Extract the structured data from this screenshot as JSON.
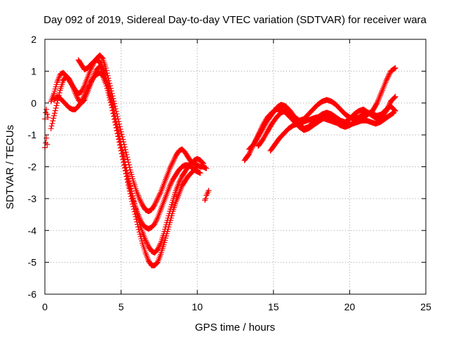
{
  "chart_data": {
    "type": "scatter",
    "title": "Day 092 of 2019, Sidereal Day-to-day VTEC variation (SDTVAR) for receiver wara",
    "xlabel": "GPS time / hours",
    "ylabel": "SDTVAR / TECUs",
    "xlim": [
      0,
      25
    ],
    "ylim": [
      -6,
      2
    ],
    "xticks": [
      0,
      5,
      10,
      15,
      20,
      25
    ],
    "yticks": [
      -6,
      -5,
      -4,
      -3,
      -2,
      -1,
      0,
      1,
      2
    ],
    "grid": true,
    "marker": "plus",
    "color": "#ff0000",
    "series": [
      {
        "x": [
          0.0,
          0.05,
          0.1,
          0.15,
          0.2
        ],
        "y": [
          -0.5,
          -0.3,
          -0.2,
          -0.35,
          -0.45
        ]
      },
      {
        "x": [
          0.0,
          0.05,
          0.1,
          0.15
        ],
        "y": [
          -1.4,
          -1.25,
          -1.1,
          -1.3
        ]
      },
      {
        "x": [
          0.4,
          0.6,
          0.8,
          1.0,
          1.2,
          1.4,
          1.6,
          1.8,
          2.0,
          2.2,
          2.4,
          2.6,
          2.8,
          3.0,
          3.2,
          3.4,
          3.6,
          3.8,
          4.0,
          4.2,
          4.4,
          4.6,
          4.8,
          5.0,
          5.2,
          5.4,
          5.6,
          5.8,
          6.0,
          6.2,
          6.4,
          6.6,
          6.8,
          7.0,
          7.2,
          7.4,
          7.6,
          7.8,
          8.0,
          8.2,
          8.4,
          8.6,
          8.8,
          9.0,
          9.2,
          9.4,
          9.6,
          9.8,
          10.0,
          10.2,
          10.4,
          10.6
        ],
        "y": [
          0.05,
          0.3,
          0.65,
          0.9,
          0.95,
          0.85,
          0.7,
          0.55,
          0.4,
          0.3,
          0.35,
          0.55,
          0.8,
          1.05,
          1.25,
          1.4,
          1.5,
          1.4,
          1.1,
          0.7,
          0.3,
          -0.1,
          -0.5,
          -0.9,
          -1.3,
          -1.7,
          -2.1,
          -2.45,
          -2.75,
          -3.0,
          -3.2,
          -3.35,
          -3.4,
          -3.35,
          -3.2,
          -3.0,
          -2.8,
          -2.55,
          -2.3,
          -2.05,
          -1.85,
          -1.65,
          -1.5,
          -1.45,
          -1.55,
          -1.7,
          -1.85,
          -1.9,
          -1.95,
          -2.0,
          -2.0,
          -2.05
        ]
      },
      {
        "x": [
          0.4,
          0.6,
          0.8,
          1.0,
          1.2,
          1.4,
          1.6,
          1.8,
          2.0,
          2.2,
          2.4,
          2.6,
          2.8,
          3.0,
          3.2,
          3.4,
          3.6,
          3.8,
          4.0,
          4.2,
          4.4,
          4.6,
          4.8,
          5.0,
          5.2,
          5.4,
          5.6,
          5.8,
          6.0,
          6.2,
          6.4,
          6.6,
          6.8,
          7.0,
          7.2,
          7.4,
          7.6,
          7.8,
          8.0,
          8.2,
          8.4,
          8.6,
          8.8,
          9.0,
          9.2,
          9.4,
          9.6,
          9.8,
          10.0,
          10.2,
          10.4
        ],
        "y": [
          -0.8,
          -0.4,
          0.0,
          0.4,
          0.7,
          0.85,
          0.75,
          0.55,
          0.3,
          0.1,
          0.0,
          0.1,
          0.35,
          0.6,
          0.85,
          1.05,
          1.15,
          1.05,
          0.8,
          0.45,
          0.05,
          -0.4,
          -0.85,
          -1.3,
          -1.75,
          -2.2,
          -2.6,
          -3.0,
          -3.4,
          -3.75,
          -4.05,
          -4.3,
          -4.5,
          -4.65,
          -4.7,
          -4.6,
          -4.4,
          -4.1,
          -3.75,
          -3.4,
          -3.05,
          -2.75,
          -2.5,
          -2.3,
          -2.15,
          -2.0,
          -1.9,
          -1.8,
          -1.75,
          -1.8,
          -1.9
        ]
      },
      {
        "x": [
          0.6,
          0.8,
          1.0,
          1.2,
          1.4,
          1.6,
          1.8,
          2.0,
          2.2,
          2.4,
          2.6,
          2.8,
          3.0,
          3.2,
          3.4,
          3.6,
          3.8,
          4.0,
          4.2,
          4.4,
          4.6,
          4.8,
          5.0,
          5.2,
          5.4,
          5.6,
          5.8,
          6.0,
          6.2,
          6.4,
          6.6,
          6.8,
          7.0,
          7.2,
          7.4,
          7.6,
          7.8,
          8.0,
          8.2,
          8.4,
          8.6,
          8.8,
          9.0,
          9.2,
          9.4,
          9.6,
          9.8,
          10.0
        ],
        "y": [
          0.1,
          0.2,
          0.15,
          0.05,
          -0.05,
          -0.15,
          -0.2,
          -0.2,
          -0.1,
          0.05,
          0.25,
          0.45,
          0.65,
          0.8,
          0.9,
          0.95,
          0.85,
          0.6,
          0.25,
          -0.15,
          -0.6,
          -1.05,
          -1.5,
          -1.95,
          -2.4,
          -2.85,
          -3.25,
          -3.65,
          -4.05,
          -4.4,
          -4.7,
          -4.95,
          -5.1,
          -5.1,
          -5.0,
          -4.75,
          -4.45,
          -4.1,
          -3.75,
          -3.4,
          -3.1,
          -2.85,
          -2.6,
          -2.45,
          -2.3,
          -2.2,
          -2.1,
          -2.0
        ]
      },
      {
        "x": [
          2.2,
          2.4,
          2.6,
          2.8,
          3.0,
          3.2,
          3.4,
          3.6,
          3.8,
          4.0,
          4.2,
          4.4,
          4.6,
          4.8,
          5.0,
          5.2,
          5.4,
          5.6,
          5.8,
          6.0,
          6.2,
          6.4,
          6.6,
          6.8,
          7.0,
          7.2,
          7.4,
          7.6,
          7.8,
          8.0,
          8.2,
          8.4,
          8.6,
          8.8,
          9.0,
          9.2,
          9.4,
          9.6,
          9.8,
          10.0,
          10.2
        ],
        "y": [
          1.35,
          1.2,
          1.05,
          1.1,
          1.2,
          1.3,
          1.35,
          1.3,
          1.1,
          0.8,
          0.4,
          -0.05,
          -0.5,
          -0.95,
          -1.4,
          -1.85,
          -2.3,
          -2.7,
          -3.05,
          -3.35,
          -3.6,
          -3.8,
          -3.9,
          -3.95,
          -3.9,
          -3.8,
          -3.6,
          -3.35,
          -3.1,
          -2.85,
          -2.6,
          -2.4,
          -2.25,
          -2.1,
          -2.0,
          -1.95,
          -1.95,
          -2.0,
          -2.1,
          -2.15,
          -2.2
        ]
      },
      {
        "x": [
          10.5,
          10.55,
          10.6,
          10.65,
          10.7,
          10.75
        ],
        "y": [
          -3.05,
          -3.0,
          -2.9,
          -2.85,
          -2.8,
          -2.75
        ]
      },
      {
        "x": [
          13.1,
          13.4,
          13.7,
          14.0,
          14.3,
          14.6,
          14.9,
          15.2,
          15.5,
          15.8,
          16.1,
          16.4,
          16.7,
          17.0,
          17.3,
          17.6,
          17.9,
          18.2,
          18.5,
          18.8,
          19.1,
          19.4,
          19.7,
          20.0,
          20.3,
          20.6,
          20.9,
          21.2,
          21.5,
          21.8,
          22.1,
          22.4,
          22.7,
          23.0
        ],
        "y": [
          -1.8,
          -1.6,
          -1.3,
          -1.0,
          -0.7,
          -0.45,
          -0.3,
          -0.2,
          -0.2,
          -0.3,
          -0.45,
          -0.6,
          -0.75,
          -0.85,
          -0.8,
          -0.7,
          -0.6,
          -0.5,
          -0.45,
          -0.5,
          -0.6,
          -0.7,
          -0.75,
          -0.7,
          -0.6,
          -0.5,
          -0.45,
          -0.35,
          -0.25,
          0.0,
          0.35,
          0.7,
          1.0,
          1.1
        ]
      },
      {
        "x": [
          13.4,
          13.7,
          14.0,
          14.3,
          14.6,
          14.9,
          15.2,
          15.5,
          15.8,
          16.1,
          16.4,
          16.7,
          17.0,
          17.3,
          17.6,
          17.9,
          18.2,
          18.5,
          18.8,
          19.1,
          19.4,
          19.7,
          20.0,
          20.3,
          20.6,
          20.9,
          21.2,
          21.5,
          21.8,
          22.1,
          22.4,
          22.7,
          23.0
        ],
        "y": [
          -1.45,
          -1.3,
          -1.05,
          -0.8,
          -0.55,
          -0.35,
          -0.15,
          -0.05,
          -0.1,
          -0.25,
          -0.45,
          -0.65,
          -0.8,
          -0.75,
          -0.6,
          -0.45,
          -0.35,
          -0.3,
          -0.35,
          -0.45,
          -0.55,
          -0.6,
          -0.5,
          -0.35,
          -0.25,
          -0.2,
          -0.3,
          -0.4,
          -0.5,
          -0.45,
          -0.25,
          0.05,
          0.2
        ]
      },
      {
        "x": [
          14.0,
          14.3,
          14.6,
          14.9,
          15.2,
          15.5,
          15.8,
          16.1,
          16.4,
          16.7,
          17.0,
          17.3,
          17.6,
          17.9,
          18.2,
          18.5,
          18.8,
          19.1,
          19.4,
          19.7,
          20.0,
          20.3,
          20.6,
          20.9,
          21.2,
          21.5,
          21.8,
          22.1,
          22.4,
          22.7,
          23.0
        ],
        "y": [
          -1.35,
          -1.15,
          -0.9,
          -0.65,
          -0.45,
          -0.3,
          -0.25,
          -0.3,
          -0.45,
          -0.55,
          -0.5,
          -0.35,
          -0.2,
          -0.05,
          0.05,
          0.1,
          0.05,
          -0.05,
          -0.2,
          -0.35,
          -0.45,
          -0.5,
          -0.45,
          -0.35,
          -0.3,
          -0.35,
          -0.4,
          -0.35,
          -0.2,
          -0.1,
          -0.25
        ]
      },
      {
        "x": [
          14.8,
          15.1,
          15.4,
          15.7,
          16.0,
          16.3,
          16.6,
          16.9,
          17.2,
          17.5,
          17.8,
          18.1,
          18.4,
          18.7,
          19.0,
          19.3,
          19.6,
          19.9,
          20.2,
          20.5,
          20.8,
          21.1,
          21.4,
          21.7,
          22.0,
          22.3,
          22.6,
          22.9
        ],
        "y": [
          -1.5,
          -1.3,
          -1.1,
          -0.95,
          -0.8,
          -0.7,
          -0.65,
          -0.6,
          -0.55,
          -0.5,
          -0.45,
          -0.45,
          -0.5,
          -0.55,
          -0.6,
          -0.65,
          -0.7,
          -0.7,
          -0.65,
          -0.6,
          -0.55,
          -0.55,
          -0.6,
          -0.65,
          -0.6,
          -0.5,
          -0.4,
          -0.3
        ]
      }
    ]
  }
}
